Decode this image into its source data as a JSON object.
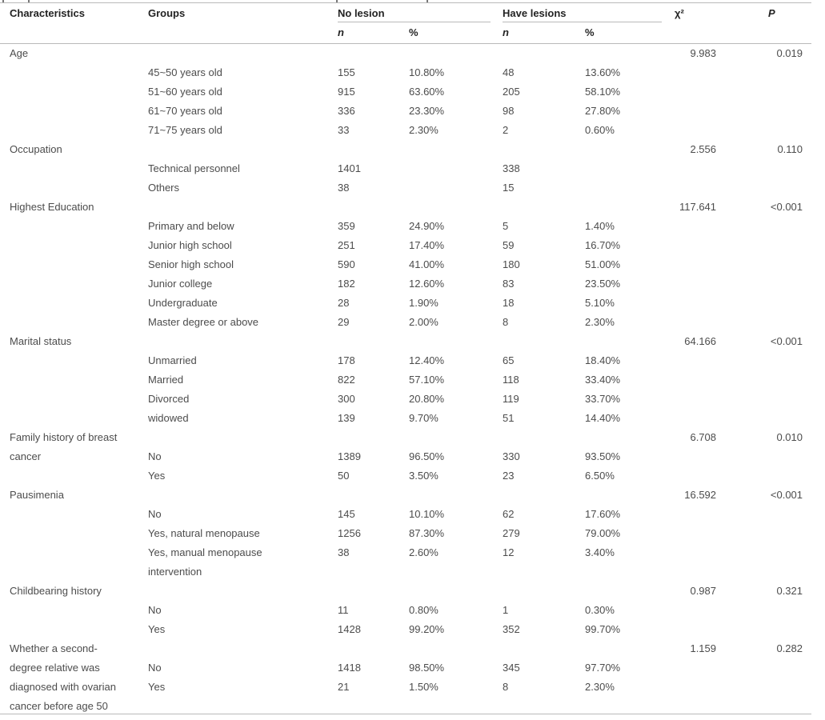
{
  "colors": {
    "heading_text": "#232323",
    "body_text": "#4c4c4c",
    "rule": "#b9b9b9",
    "background": "#ffffff"
  },
  "table": {
    "headers": {
      "characteristics": "Characteristics",
      "groups": "Groups",
      "no_lesion": "No lesion",
      "have_lesions": "Have lesions",
      "chi_square": "χ²",
      "p": "P",
      "n": "n",
      "pct": "%"
    },
    "sections": [
      {
        "characteristic": "Age",
        "chi_square": "9.983",
        "p": "0.019",
        "rows": [
          {
            "group": "45~50 years old",
            "n1": "155",
            "pct1": "10.80%",
            "n2": "48",
            "pct2": "13.60%"
          },
          {
            "group": "51~60 years old",
            "n1": "915",
            "pct1": "63.60%",
            "n2": "205",
            "pct2": "58.10%"
          },
          {
            "group": "61~70 years old",
            "n1": "336",
            "pct1": "23.30%",
            "n2": "98",
            "pct2": "27.80%"
          },
          {
            "group": "71~75 years old",
            "n1": "33",
            "pct1": "2.30%",
            "n2": "2",
            "pct2": "0.60%"
          }
        ]
      },
      {
        "characteristic": "Occupation",
        "chi_square": "2.556",
        "p": "0.110",
        "rows": [
          {
            "group": "Technical personnel",
            "n1": "1401",
            "pct1": "",
            "n2": "338",
            "pct2": ""
          },
          {
            "group": "Others",
            "n1": "38",
            "pct1": "",
            "n2": "15",
            "pct2": ""
          }
        ]
      },
      {
        "characteristic": "Highest Education",
        "chi_square": "117.641",
        "p": "<0.001",
        "rows": [
          {
            "group": "Primary and below",
            "n1": "359",
            "pct1": "24.90%",
            "n2": "5",
            "pct2": "1.40%"
          },
          {
            "group": "Junior high school",
            "n1": "251",
            "pct1": "17.40%",
            "n2": "59",
            "pct2": "16.70%"
          },
          {
            "group": "Senior high school",
            "n1": "590",
            "pct1": "41.00%",
            "n2": "180",
            "pct2": "51.00%"
          },
          {
            "group": "Junior college",
            "n1": "182",
            "pct1": "12.60%",
            "n2": "83",
            "pct2": "23.50%"
          },
          {
            "group": "Undergraduate",
            "n1": "28",
            "pct1": "1.90%",
            "n2": "18",
            "pct2": "5.10%"
          },
          {
            "group": "Master degree or above",
            "n1": "29",
            "pct1": "2.00%",
            "n2": "8",
            "pct2": "2.30%"
          }
        ]
      },
      {
        "characteristic": "Marital status",
        "chi_square": "64.166",
        "p": "<0.001",
        "rows": [
          {
            "group": "Unmarried",
            "n1": "178",
            "pct1": "12.40%",
            "n2": "65",
            "pct2": "18.40%"
          },
          {
            "group": "Married",
            "n1": "822",
            "pct1": "57.10%",
            "n2": "118",
            "pct2": "33.40%"
          },
          {
            "group": "Divorced",
            "n1": "300",
            "pct1": "20.80%",
            "n2": "119",
            "pct2": "33.70%"
          },
          {
            "group": "widowed",
            "n1": "139",
            "pct1": "9.70%",
            "n2": "51",
            "pct2": "14.40%"
          }
        ]
      },
      {
        "characteristic": "Family history of breast\ncancer",
        "chi_square": "6.708",
        "p": "0.010",
        "rows": [
          {
            "group": "No",
            "n1": "1389",
            "pct1": "96.50%",
            "n2": "330",
            "pct2": "93.50%"
          },
          {
            "group": "Yes",
            "n1": "50",
            "pct1": "3.50%",
            "n2": "23",
            "pct2": "6.50%"
          }
        ]
      },
      {
        "characteristic": "Pausimenia",
        "chi_square": "16.592",
        "p": "<0.001",
        "rows": [
          {
            "group": "No",
            "n1": "145",
            "pct1": "10.10%",
            "n2": "62",
            "pct2": "17.60%"
          },
          {
            "group": "Yes, natural menopause",
            "n1": "1256",
            "pct1": "87.30%",
            "n2": "279",
            "pct2": "79.00%"
          },
          {
            "group": "Yes, manual menopause\nintervention",
            "n1": "38",
            "pct1": "2.60%",
            "n2": "12",
            "pct2": "3.40%"
          }
        ]
      },
      {
        "characteristic": "Childbearing history",
        "chi_square": "0.987",
        "p": "0.321",
        "rows": [
          {
            "group": "No",
            "n1": "11",
            "pct1": "0.80%",
            "n2": "1",
            "pct2": "0.30%"
          },
          {
            "group": "Yes",
            "n1": "1428",
            "pct1": "99.20%",
            "n2": "352",
            "pct2": "99.70%"
          }
        ]
      },
      {
        "characteristic": "Whether a second-\ndegree relative was\ndiagnosed with ovarian\ncancer before age 50",
        "chi_square": "1.159",
        "p": "0.282",
        "rows": [
          {
            "group": "No",
            "n1": "1418",
            "pct1": "98.50%",
            "n2": "345",
            "pct2": "97.70%"
          },
          {
            "group": "Yes",
            "n1": "21",
            "pct1": "1.50%",
            "n2": "8",
            "pct2": "2.30%"
          }
        ]
      }
    ]
  }
}
